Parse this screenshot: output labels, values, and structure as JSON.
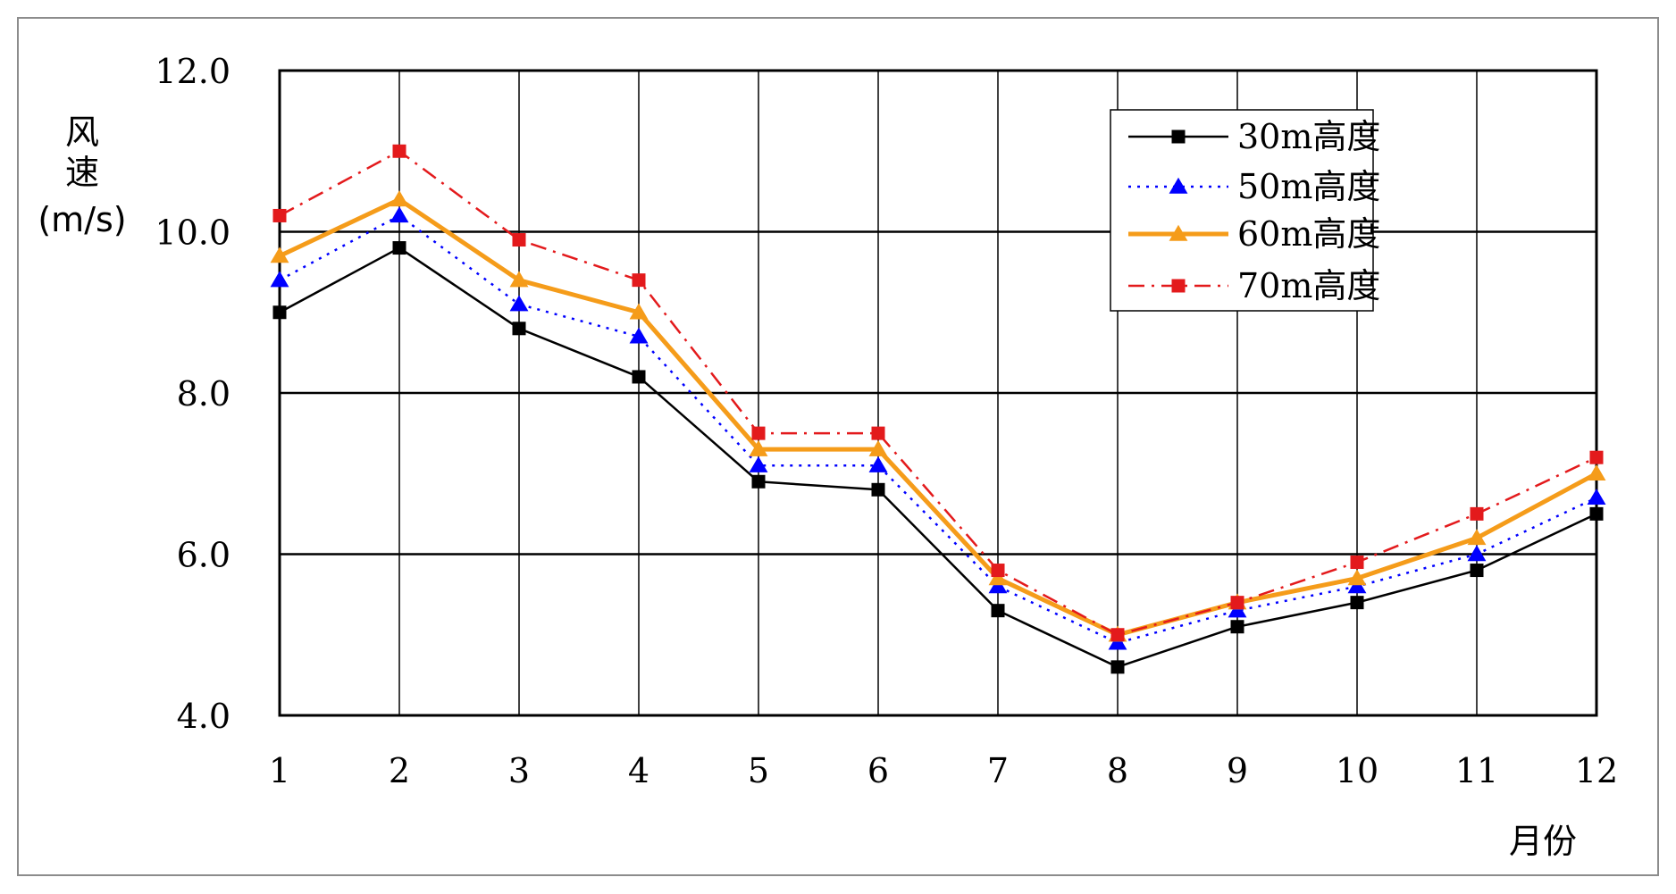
{
  "chart_data": {
    "type": "line",
    "title": "",
    "xlabel": "月份",
    "ylabel": [
      "风",
      "速",
      "(m/s)"
    ],
    "categories": [
      "1",
      "2",
      "3",
      "4",
      "5",
      "6",
      "7",
      "8",
      "9",
      "10",
      "11",
      "12"
    ],
    "y_ticks": [
      "4.0",
      "6.0",
      "8.0",
      "10.0",
      "12.0"
    ],
    "ylim": [
      4.0,
      12.0
    ],
    "grid": {
      "horizontal": true,
      "vertical": true
    },
    "legend_position": "top-right",
    "series": [
      {
        "name": "30m高度",
        "color": "#000000",
        "line_style": "solid",
        "marker": "square",
        "values": [
          9.0,
          9.8,
          8.8,
          8.2,
          6.9,
          6.8,
          5.3,
          4.6,
          5.1,
          5.4,
          5.8,
          6.5
        ]
      },
      {
        "name": "50m高度",
        "color": "#0000ff",
        "line_style": "dotted",
        "marker": "triangle",
        "values": [
          9.4,
          10.2,
          9.1,
          8.7,
          7.1,
          7.1,
          5.6,
          4.9,
          5.3,
          5.6,
          6.0,
          6.7
        ]
      },
      {
        "name": "60m高度",
        "color": "#f59c1a",
        "line_style": "solid-thick",
        "marker": "triangle",
        "values": [
          9.7,
          10.4,
          9.4,
          9.0,
          7.3,
          7.3,
          5.7,
          5.0,
          5.4,
          5.7,
          6.2,
          7.0
        ]
      },
      {
        "name": "70m高度",
        "color": "#e31a1c",
        "line_style": "dash-dot",
        "marker": "square",
        "values": [
          10.2,
          11.0,
          9.9,
          9.4,
          7.5,
          7.5,
          5.8,
          5.0,
          5.4,
          5.9,
          6.5,
          7.2
        ]
      }
    ]
  }
}
